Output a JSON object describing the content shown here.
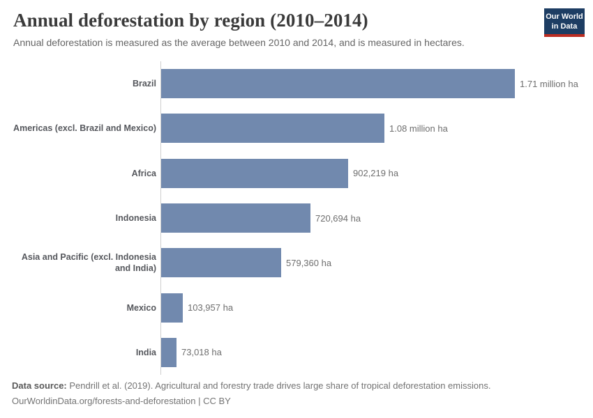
{
  "header": {
    "title": "Annual deforestation by region (2010–2014)",
    "subtitle": "Annual deforestation is measured as the average between 2010 and 2014, and is measured in hectares.",
    "logo": {
      "line1": "Our World",
      "line2": "in Data"
    }
  },
  "chart_data": {
    "type": "bar",
    "orientation": "horizontal",
    "categories": [
      "Brazil",
      "Americas (excl. Brazil and Mexico)",
      "Africa",
      "Indonesia",
      "Asia and Pacific (excl. Indonesia and India)",
      "Mexico",
      "India"
    ],
    "values": [
      1710000,
      1080000,
      902219,
      720694,
      579360,
      103957,
      73018
    ],
    "value_labels": [
      "1.71 million ha",
      "1.08 million ha",
      "902,219 ha",
      "720,694 ha",
      "579,360 ha",
      "103,957 ha",
      "73,018 ha"
    ],
    "unit": "hectares",
    "xlim": [
      0,
      1710000
    ],
    "grid": false,
    "bar_color": "#7189ae",
    "axis_color": "#cfcfcf"
  },
  "footer": {
    "source_label": "Data source:",
    "source_text": " Pendrill et al. (2019). Agricultural and forestry trade drives large share of tropical deforestation emissions.",
    "link_line": "OurWorldinData.org/forests-and-deforestation | CC BY"
  }
}
